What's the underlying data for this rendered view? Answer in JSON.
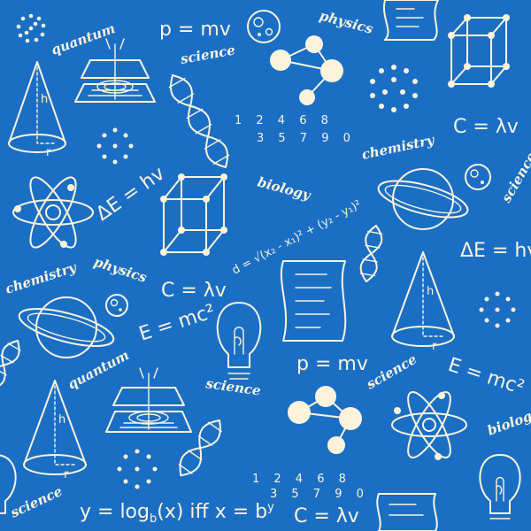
{
  "colors": {
    "background": "#1a6fc4",
    "ink": "#fbf3dc"
  },
  "formulas": {
    "p_mv": "p = mv",
    "c_lambda_v": "C = λv",
    "delta_e": "ΔE = hv",
    "e_mc2": "E = mc²",
    "log": "y = log",
    "log_tail": "(x) iff x = b",
    "distance": "d = √(x₂ - x₁)² + (y₂ - y₁)²",
    "digits_row1": "1 2 4 6 8",
    "digits_row2": "3 5 7 9 0"
  },
  "words": {
    "quantum": "quantum",
    "science": "science",
    "physics": "physics",
    "chemistry": "chemistry",
    "biology": "biology"
  }
}
